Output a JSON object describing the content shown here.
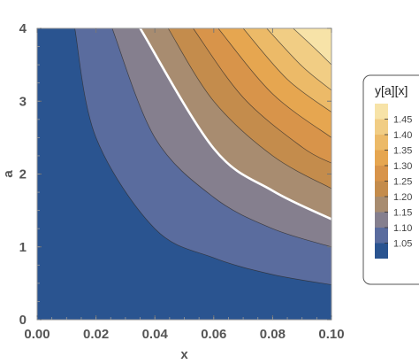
{
  "chart_data": {
    "type": "contour",
    "function": "y[a][x]",
    "xlabel": "x",
    "ylabel": "a",
    "xlim": [
      0,
      0.1
    ],
    "ylim": [
      0,
      4
    ],
    "x_ticks": [
      "0.00",
      "0.02",
      "0.04",
      "0.06",
      "0.08",
      "0.10"
    ],
    "x_tick_values": [
      0,
      0.02,
      0.04,
      0.06,
      0.08,
      0.1
    ],
    "y_ticks": [
      "0",
      "1",
      "2",
      "3",
      "4"
    ],
    "y_tick_values": [
      0,
      1,
      2,
      3,
      4
    ],
    "contour_levels": [
      1.05,
      1.1,
      1.15,
      1.2,
      1.25,
      1.3,
      1.35,
      1.4,
      1.45
    ],
    "highlighted_level": 1.15,
    "contour_curves": [
      {
        "level": 1.05,
        "points": [
          [
            0.0128,
            4.0
          ],
          [
            0.02,
            2.5
          ],
          [
            0.04,
            1.25
          ],
          [
            0.06,
            0.85
          ],
          [
            0.08,
            0.62
          ],
          [
            0.1,
            0.48
          ]
        ]
      },
      {
        "level": 1.1,
        "points": [
          [
            0.0255,
            4.0
          ],
          [
            0.04,
            2.5
          ],
          [
            0.06,
            1.68
          ],
          [
            0.08,
            1.25
          ],
          [
            0.1,
            1.0
          ]
        ]
      },
      {
        "level": 1.15,
        "points": [
          [
            0.035,
            4.0
          ],
          [
            0.06,
            2.35
          ],
          [
            0.08,
            1.77
          ],
          [
            0.1,
            1.38
          ]
        ]
      },
      {
        "level": 1.2,
        "points": [
          [
            0.0445,
            4.0
          ],
          [
            0.06,
            3.0
          ],
          [
            0.08,
            2.25
          ],
          [
            0.1,
            1.8
          ]
        ]
      },
      {
        "level": 1.25,
        "points": [
          [
            0.053,
            4.0
          ],
          [
            0.07,
            3.05
          ],
          [
            0.09,
            2.37
          ],
          [
            0.1,
            2.15
          ]
        ]
      },
      {
        "level": 1.3,
        "points": [
          [
            0.0615,
            4.0
          ],
          [
            0.08,
            3.1
          ],
          [
            0.1,
            2.5
          ]
        ]
      },
      {
        "level": 1.35,
        "points": [
          [
            0.07,
            4.0
          ],
          [
            0.085,
            3.3
          ],
          [
            0.1,
            2.85
          ]
        ]
      },
      {
        "level": 1.4,
        "points": [
          [
            0.078,
            4.0
          ],
          [
            0.09,
            3.48
          ],
          [
            0.1,
            3.15
          ]
        ]
      },
      {
        "level": 1.45,
        "points": [
          [
            0.087,
            4.0
          ],
          [
            0.095,
            3.7
          ],
          [
            0.1,
            3.5
          ]
        ]
      }
    ],
    "band_colors": [
      "#2a5490",
      "#5a6c9e",
      "#857f8e",
      "#a88c70",
      "#c48c4c",
      "#d8944a",
      "#e6a650",
      "#ecba68",
      "#f1cd84",
      "#f7e3a8"
    ],
    "legend": {
      "title": "y[a][x]",
      "placement": "right",
      "labels": [
        "1.45",
        "1.40",
        "1.35",
        "1.30",
        "1.25",
        "1.20",
        "1.15",
        "1.10",
        "1.05"
      ]
    }
  }
}
